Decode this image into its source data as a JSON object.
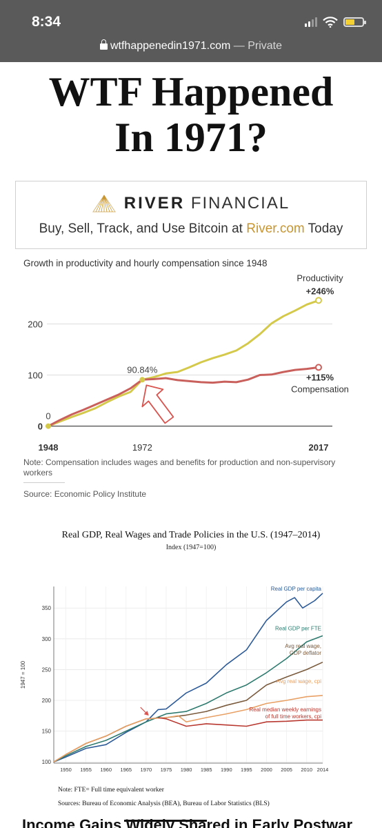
{
  "status_bar": {
    "time": "8:34"
  },
  "browser": {
    "domain": "wtfhappenedin1971.com",
    "separator": " — ",
    "mode": "Private"
  },
  "headline": {
    "line1": "WTF Happened",
    "line2": "In 1971?"
  },
  "ad": {
    "brand_bold": "RIVER",
    "brand_light": "FINANCIAL",
    "tagline_before": "Buy, Sell, Track, and Use Bitcoin at ",
    "tagline_link": "River.com",
    "tagline_after": " Today",
    "accent_color": "#c8952f"
  },
  "chart_data": [
    {
      "type": "line",
      "title": "Growth in productivity and hourly compensation since 1948",
      "x_tick_labels": [
        "1948",
        "1972",
        "2017"
      ],
      "y_tick_labels": [
        "0",
        "100",
        "200"
      ],
      "xlim": [
        1948,
        2017
      ],
      "ylim": [
        -10,
        260
      ],
      "grid": true,
      "annotations": [
        {
          "text": "0",
          "x": 1948,
          "y": 0
        },
        {
          "text": "90.84%",
          "x": 1972,
          "y": 90.84
        },
        {
          "text": "Productivity",
          "series": "productivity"
        },
        {
          "text": "+246%",
          "series": "productivity"
        },
        {
          "text": "+115%",
          "series": "compensation"
        },
        {
          "text": "Compensation",
          "series": "compensation"
        }
      ],
      "series": [
        {
          "name": "Productivity",
          "color": "#d4c94a",
          "x": [
            1948,
            1951,
            1954,
            1957,
            1960,
            1963,
            1966,
            1969,
            1972,
            1975,
            1978,
            1981,
            1984,
            1987,
            1990,
            1993,
            1996,
            1999,
            2002,
            2005,
            2008,
            2011,
            2014,
            2017
          ],
          "y": [
            0,
            9,
            18,
            26,
            35,
            47,
            58,
            67,
            90.84,
            96,
            103,
            106,
            115,
            125,
            133,
            140,
            148,
            162,
            180,
            201,
            215,
            226,
            238,
            246
          ]
        },
        {
          "name": "Compensation",
          "color": "#c9605c",
          "x": [
            1948,
            1951,
            1954,
            1957,
            1960,
            1963,
            1966,
            1969,
            1972,
            1975,
            1978,
            1981,
            1984,
            1987,
            1990,
            1993,
            1996,
            1999,
            2002,
            2005,
            2008,
            2011,
            2014,
            2017
          ],
          "y": [
            0,
            12,
            23,
            32,
            42,
            52,
            62,
            74,
            90.84,
            92,
            94,
            90,
            88,
            86,
            85,
            87,
            86,
            91,
            100,
            101,
            106,
            110,
            112,
            115
          ]
        }
      ],
      "note": "Note: Compensation includes wages and benefits for production and non-supervisory workers",
      "source": "Source: Economic Policy Institute"
    },
    {
      "type": "line",
      "title": "Real GDP, Real Wages and Trade Policies in the U.S. (1947–2014)",
      "subtitle": "Index (1947=100)",
      "ylabel": "1947 = 100",
      "x_tick_labels": [
        "1950",
        "1955",
        "1960",
        "1965",
        "1970",
        "1975",
        "1980",
        "1985",
        "1990",
        "1995",
        "2000",
        "2005",
        "2010",
        "2014"
      ],
      "y_tick_labels": [
        "100",
        "150",
        "200",
        "250",
        "300",
        "350"
      ],
      "xlim": [
        1947,
        2014
      ],
      "ylim": [
        98,
        385
      ],
      "grid": true,
      "series": [
        {
          "name": "Real GDP per capita",
          "color": "#2c5a97",
          "x": [
            1947,
            1950,
            1955,
            1960,
            1965,
            1970,
            1973,
            1975,
            1980,
            1985,
            1990,
            1995,
            2000,
            2005,
            2007,
            2009,
            2012,
            2014
          ],
          "y": [
            100,
            108,
            122,
            128,
            148,
            165,
            185,
            186,
            212,
            228,
            258,
            282,
            330,
            360,
            367,
            350,
            362,
            374
          ]
        },
        {
          "name": "Real GDP per FTE",
          "color": "#2e7a6e",
          "x": [
            1947,
            1950,
            1955,
            1960,
            1965,
            1970,
            1975,
            1980,
            1985,
            1990,
            1995,
            2000,
            2005,
            2010,
            2014
          ],
          "y": [
            100,
            110,
            125,
            135,
            150,
            165,
            178,
            182,
            195,
            212,
            225,
            245,
            268,
            295,
            305
          ]
        },
        {
          "name": "Avg real wage, GDP deflator",
          "color": "#7a5a3c",
          "x": [
            1947,
            1950,
            1955,
            1960,
            1965,
            1970,
            1975,
            1980,
            1985,
            1990,
            1995,
            2000,
            2005,
            2010,
            2014
          ],
          "y": [
            100,
            112,
            130,
            142,
            158,
            170,
            172,
            176,
            182,
            192,
            200,
            225,
            238,
            250,
            262
          ]
        },
        {
          "name": "Avg real wage, cpi",
          "color": "#e8a064",
          "x": [
            1947,
            1950,
            1955,
            1960,
            1965,
            1970,
            1975,
            1978,
            1980,
            1985,
            1990,
            1995,
            2000,
            2005,
            2010,
            2014
          ],
          "y": [
            100,
            112,
            130,
            142,
            158,
            170,
            172,
            175,
            165,
            172,
            178,
            185,
            195,
            200,
            206,
            208
          ]
        },
        {
          "name": "Real median weekly earnings of full time workers, cpi",
          "color": "#b8372f",
          "x": [
            1973,
            1975,
            1980,
            1985,
            1990,
            1995,
            2000,
            2005,
            2010,
            2014
          ],
          "y": [
            172,
            170,
            158,
            162,
            160,
            158,
            165,
            166,
            168,
            168
          ]
        }
      ],
      "legend_labels": [
        "Real GDP per capita",
        "Real GDP per FTE",
        "Avg real wage,",
        "GDP deflator",
        "Avg real wage, cpi",
        "Real median weekly earnings",
        "of full time workers, cpi"
      ],
      "note": "Note: FTE= Full time equivalent worker",
      "sources": "Sources:  Bureau of Economic Analysis (BEA), Bureau of Labor Statistics (BLS)"
    }
  ],
  "next_section": {
    "heading": "Income Gains Widely Shared in Early Postwar"
  }
}
